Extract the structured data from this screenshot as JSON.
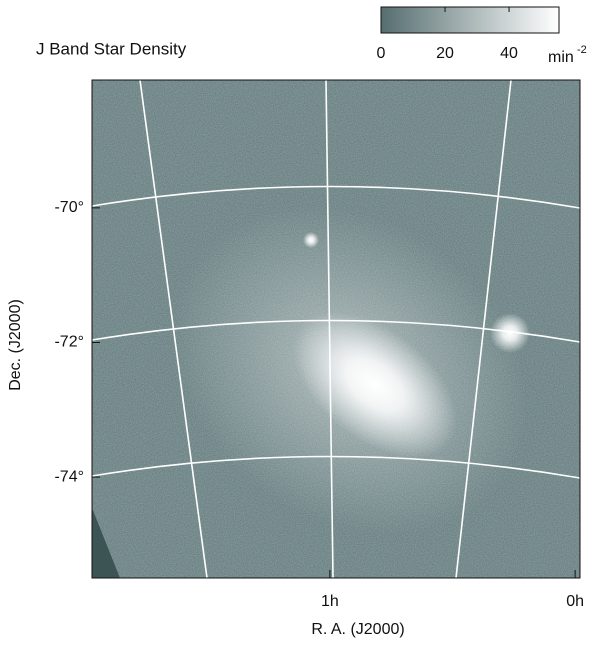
{
  "chart_data": {
    "type": "image",
    "title": "J Band Star Density",
    "colorbar_ticks": [
      0,
      20,
      40
    ],
    "clim": [
      0,
      55.6
    ],
    "colormap": [
      "#566e70",
      "#ffffff"
    ],
    "colorbar_unit": "min",
    "colorbar_unit_exponent": "-2",
    "ylabel": "Dec. (J2000)",
    "xlabel": "R. A. (J2000)",
    "ylim": [
      -68.1,
      -75.5
    ],
    "yticks": [
      {
        "value": -70,
        "label": "-70°"
      },
      {
        "value": -72,
        "label": "-72°"
      },
      {
        "value": -74,
        "label": "-74°"
      }
    ],
    "xlim": [
      1.97,
      -0.02
    ],
    "xticks": [
      {
        "value": 1,
        "label": "1h"
      },
      {
        "value": 0,
        "label": "0h"
      }
    ]
  }
}
